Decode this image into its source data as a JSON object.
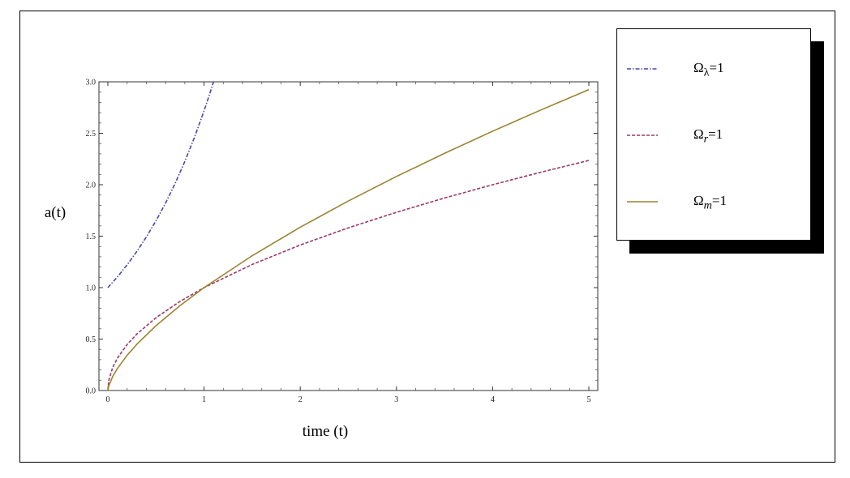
{
  "chart_data": {
    "type": "line",
    "title": "",
    "xlabel": "time (t)",
    "ylabel": "a(t)",
    "xlim": [
      0,
      5
    ],
    "ylim": [
      0,
      3
    ],
    "xticks": [
      "0",
      "1",
      "2",
      "3",
      "4",
      "5"
    ],
    "yticks": [
      "0.0",
      "0.5",
      "1.0",
      "1.5",
      "2.0",
      "2.5",
      "3.0"
    ],
    "grid": false,
    "legend_position": "right",
    "series": [
      {
        "name": "Ω_λ=1",
        "label_base": "Ω",
        "label_sub": "λ",
        "label_rest": "=1",
        "style": "dash-dot",
        "color": "#4b46a8",
        "x": [
          0,
          0.1,
          0.2,
          0.3,
          0.4,
          0.5,
          0.6,
          0.7,
          0.8,
          0.9,
          1.0,
          1.05,
          1.0986
        ],
        "y": [
          1.0,
          1.105,
          1.221,
          1.35,
          1.492,
          1.649,
          1.822,
          2.014,
          2.226,
          2.46,
          2.718,
          2.858,
          3.0
        ]
      },
      {
        "name": "Ω_r=1",
        "label_base": "Ω",
        "label_sub": "r",
        "label_rest": "=1",
        "style": "dashed",
        "color": "#9a3a6a",
        "x": [
          0,
          0.01,
          0.05,
          0.1,
          0.2,
          0.3,
          0.5,
          0.75,
          1,
          1.5,
          2,
          2.5,
          3,
          3.5,
          4,
          4.5,
          5
        ],
        "y": [
          0,
          0.1,
          0.224,
          0.316,
          0.447,
          0.548,
          0.707,
          0.866,
          1.0,
          1.225,
          1.414,
          1.581,
          1.732,
          1.871,
          2.0,
          2.121,
          2.236
        ]
      },
      {
        "name": "Ω_m=1",
        "label_base": "Ω",
        "label_sub": "m",
        "label_rest": "=1",
        "style": "solid",
        "color": "#9a8431",
        "x": [
          0,
          0.01,
          0.05,
          0.1,
          0.2,
          0.3,
          0.5,
          0.75,
          1,
          1.5,
          2,
          2.5,
          3,
          3.5,
          4,
          4.5,
          5
        ],
        "y": [
          0,
          0.046,
          0.136,
          0.215,
          0.342,
          0.448,
          0.63,
          0.825,
          1.0,
          1.31,
          1.587,
          1.842,
          2.08,
          2.305,
          2.52,
          2.726,
          2.924
        ]
      }
    ]
  }
}
